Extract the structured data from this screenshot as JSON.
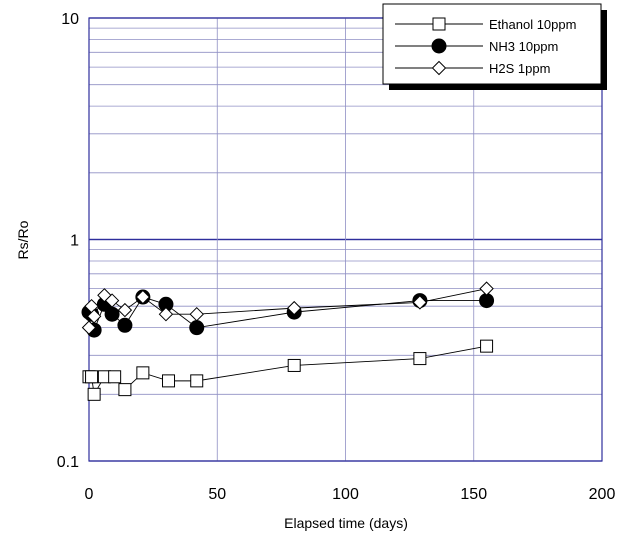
{
  "chart_data": {
    "type": "line",
    "xlabel": "Elapsed time (days)",
    "ylabel": "Rs/Ro",
    "xlim": [
      0,
      200
    ],
    "ylim": [
      0.1,
      10
    ],
    "y_scale": "log",
    "grid": true,
    "legend_position": "top-right",
    "x_ticks": [
      "0",
      "50",
      "100",
      "150",
      "200"
    ],
    "y_ticks": [
      "0.1",
      "1",
      "10"
    ],
    "colors": {
      "grid_major": "#2e2e9c",
      "grid_minor": "#8f8fc4",
      "series": "#000000",
      "background": "#ffffff"
    },
    "series": [
      {
        "name": "Ethanol 10ppm",
        "marker": "square-open",
        "x": [
          0,
          1,
          2,
          6,
          10,
          14,
          21,
          31,
          42,
          80,
          129,
          155
        ],
        "y": [
          0.24,
          0.24,
          0.2,
          0.24,
          0.24,
          0.21,
          0.25,
          0.23,
          0.23,
          0.27,
          0.29,
          0.33
        ]
      },
      {
        "name": "NH3 10ppm",
        "marker": "circle-filled",
        "x": [
          0,
          1,
          2,
          6,
          9,
          14,
          21,
          30,
          42,
          80,
          129,
          155
        ],
        "y": [
          0.47,
          0.46,
          0.39,
          0.51,
          0.46,
          0.41,
          0.55,
          0.51,
          0.4,
          0.47,
          0.53,
          0.53
        ]
      },
      {
        "name": "H2S 1ppm",
        "marker": "diamond-open",
        "x": [
          0,
          1,
          2,
          6,
          9,
          14,
          21,
          30,
          42,
          80,
          129,
          155
        ],
        "y": [
          0.4,
          0.5,
          0.45,
          0.56,
          0.53,
          0.48,
          0.55,
          0.46,
          0.46,
          0.49,
          0.52,
          0.6
        ]
      }
    ]
  }
}
